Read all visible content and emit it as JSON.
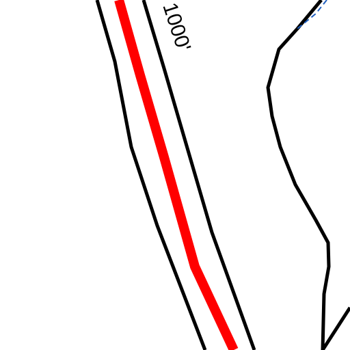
{
  "labels": {
    "contour": "1000'"
  }
}
